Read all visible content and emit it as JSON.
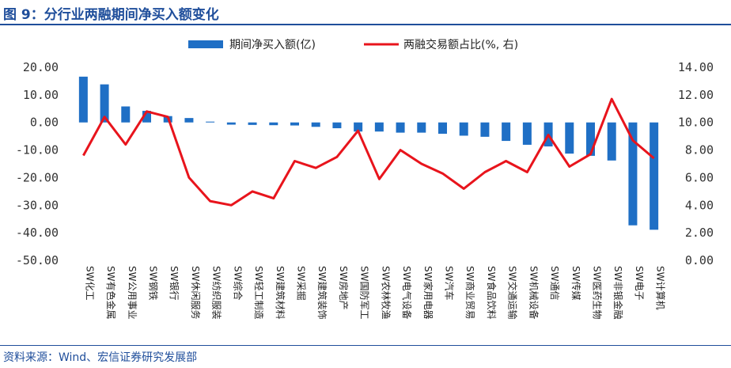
{
  "header": {
    "title": "图 9：分行业两融期间净买入额变化"
  },
  "footer": {
    "source": "资料来源：Wind、宏信证券研究发展部"
  },
  "colors": {
    "bar": "#1f6fc5",
    "line": "#e8141c",
    "title": "#1f4e9b"
  },
  "chart_data": {
    "type": "bar+line",
    "categories": [
      "SW化工",
      "SW有色金属",
      "SW公用事业",
      "SW钢铁",
      "SW银行",
      "SW休闲服务",
      "SW纺织服装",
      "SW综合",
      "SW轻工制造",
      "SW建筑材料",
      "SW采掘",
      "SW建筑装饰",
      "SW房地产",
      "SW国防军工",
      "SW农林牧渔",
      "SW电气设备",
      "SW家用电器",
      "SW汽车",
      "SW商业贸易",
      "SW食品饮料",
      "SW交通运输",
      "SW机械设备",
      "SW通信",
      "SW传媒",
      "SW医药生物",
      "SW非银金融",
      "SW电子",
      "SW计算机"
    ],
    "series": [
      {
        "name": "期间净买入额(亿)",
        "kind": "bar",
        "axis": "left",
        "values": [
          16.6,
          13.8,
          5.8,
          4.2,
          2.3,
          1.6,
          0.3,
          -0.8,
          -0.9,
          -1.0,
          -1.1,
          -1.6,
          -2.1,
          -3.3,
          -3.3,
          -3.7,
          -3.7,
          -4.1,
          -4.8,
          -5.2,
          -6.7,
          -8.1,
          -8.7,
          -11.3,
          -12.1,
          -13.8,
          -37.3,
          -38.9
        ]
      },
      {
        "name": "两融交易额占比(%, 右)",
        "kind": "line",
        "axis": "right",
        "values": [
          7.6,
          10.4,
          8.4,
          10.8,
          10.4,
          6.0,
          4.3,
          4.0,
          5.0,
          4.5,
          7.2,
          6.7,
          7.5,
          9.4,
          5.9,
          8.0,
          7.0,
          6.3,
          5.2,
          6.4,
          7.2,
          6.4,
          9.1,
          6.8,
          7.7,
          11.7,
          8.7,
          7.4
        ]
      }
    ],
    "left_axis": {
      "ylim": [
        -50,
        20
      ],
      "ticks": [
        "20.00",
        "10.00",
        "0.00",
        "-10.00",
        "-20.00",
        "-30.00",
        "-40.00",
        "-50.00"
      ]
    },
    "right_axis": {
      "ylim": [
        0,
        14
      ],
      "ticks": [
        "14.00",
        "12.00",
        "10.00",
        "8.00",
        "6.00",
        "4.00",
        "2.00",
        "0.00"
      ]
    },
    "legend": {
      "position": "top"
    }
  }
}
